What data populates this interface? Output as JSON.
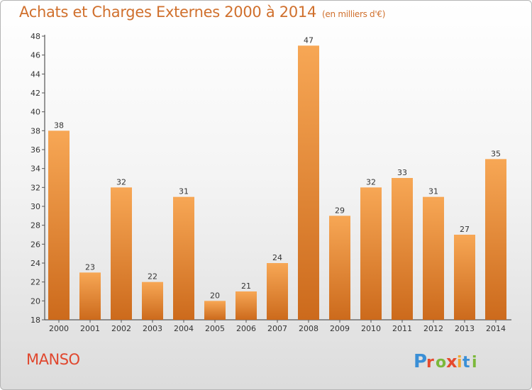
{
  "header": {
    "title": "Achats et Charges Externes 2000 à 2014",
    "subtitle": "(en milliers d'€)"
  },
  "footer": {
    "place": "MANSO",
    "logo_text": "Proxiti"
  },
  "colors": {
    "title": "#d0702d",
    "place": "#e0472e",
    "bar_light": "#f7a755",
    "bar_dark": "#cc6a1c",
    "axis": "#333333",
    "grid_tick": "#555555"
  },
  "chart_data": {
    "type": "bar",
    "title": "Achats et Charges Externes 2000 à 2014",
    "subtitle": "(en milliers d'€)",
    "categories": [
      "2000",
      "2001",
      "2002",
      "2003",
      "2004",
      "2005",
      "2006",
      "2007",
      "2008",
      "2009",
      "2010",
      "2011",
      "2012",
      "2013",
      "2014"
    ],
    "values": [
      38,
      23,
      32,
      22,
      31,
      20,
      21,
      24,
      47,
      29,
      32,
      33,
      31,
      27,
      35
    ],
    "ylim": [
      18,
      48
    ],
    "yticks": [
      18,
      20,
      22,
      24,
      26,
      28,
      30,
      32,
      34,
      36,
      38,
      40,
      42,
      44,
      46,
      48
    ],
    "grid": false,
    "data_labels": true,
    "legend": "none"
  }
}
